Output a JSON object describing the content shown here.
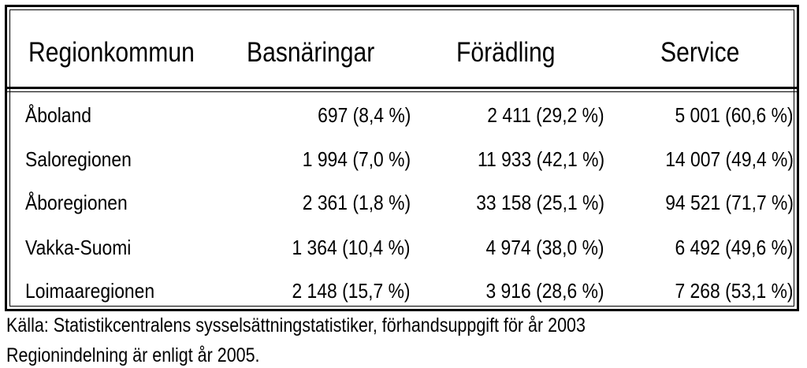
{
  "table": {
    "headers": [
      "Regionkommun",
      "Basnäringar",
      "Förädling",
      "Service"
    ],
    "rows": [
      [
        "Åboland",
        "697 (8,4 %)",
        "2 411 (29,2 %)",
        "5 001 (60,6 %)"
      ],
      [
        "Saloregionen",
        "1 994 (7,0 %)",
        "11 933 (42,1 %)",
        "14 007 (49,4 %)"
      ],
      [
        "Åboregionen",
        "2 361 (1,8 %)",
        "33 158 (25,1 %)",
        "94 521 (71,7 %)"
      ],
      [
        "Vakka-Suomi",
        "1 364 (10,4 %)",
        "4 974 (38,0 %)",
        "6 492 (49,6 %)"
      ],
      [
        "Loimaaregionen",
        "2 148 (15,7 %)",
        "3 916 (28,6 %)",
        "7 268 (53,1 %)"
      ]
    ]
  },
  "notes": {
    "source": "Källa: Statistikcentralens sysselsättningstatistiker, förhandsuppgift för år 2003",
    "region": "Regionindelning är enligt år 2005."
  }
}
